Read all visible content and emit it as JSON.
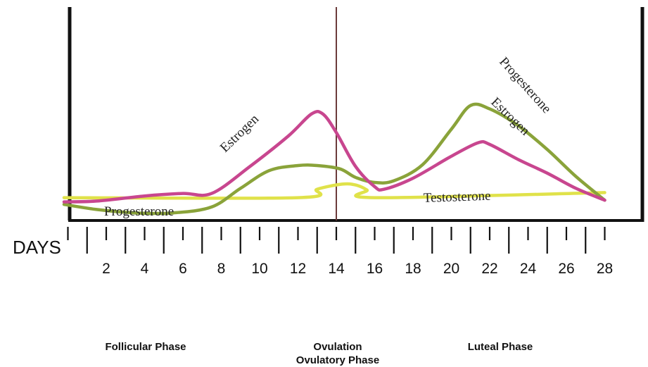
{
  "chart_data": {
    "type": "line",
    "x_axis_title": "DAYS",
    "x_ticks": [
      2,
      4,
      6,
      8,
      10,
      12,
      14,
      16,
      18,
      20,
      22,
      24,
      26,
      28
    ],
    "xlim": [
      -0.3,
      29
    ],
    "ylim": [
      0,
      10
    ],
    "ovulation_day": 14,
    "series": [
      {
        "name": "Estrogen",
        "color": "#c8468f",
        "labels": [
          "Estrogen",
          "Estrogen"
        ],
        "points": [
          [
            -0.2,
            1.1
          ],
          [
            1.5,
            1.15
          ],
          [
            4,
            1.45
          ],
          [
            6,
            1.6
          ],
          [
            7.5,
            1.6
          ],
          [
            9.5,
            3.2
          ],
          [
            11.5,
            5.0
          ],
          [
            12.7,
            6.3
          ],
          [
            13.3,
            6.3
          ],
          [
            14,
            5.2
          ],
          [
            15,
            3.2
          ],
          [
            16,
            2.0
          ],
          [
            16.5,
            1.85
          ],
          [
            18,
            2.5
          ],
          [
            20,
            3.8
          ],
          [
            21.4,
            4.6
          ],
          [
            22,
            4.5
          ],
          [
            23.5,
            3.6
          ],
          [
            25,
            2.8
          ],
          [
            26.5,
            1.9
          ],
          [
            28,
            1.2
          ]
        ]
      },
      {
        "name": "Progesterone",
        "color": "#8aa33a",
        "labels": [
          "Progesterone",
          "Progesterone"
        ],
        "points": [
          [
            -0.2,
            0.95
          ],
          [
            1.5,
            0.65
          ],
          [
            3.5,
            0.45
          ],
          [
            5.5,
            0.45
          ],
          [
            7.5,
            0.8
          ],
          [
            9,
            1.9
          ],
          [
            10.5,
            2.95
          ],
          [
            12,
            3.25
          ],
          [
            13,
            3.25
          ],
          [
            14.2,
            3.05
          ],
          [
            15,
            2.55
          ],
          [
            16,
            2.25
          ],
          [
            17,
            2.35
          ],
          [
            18.5,
            3.3
          ],
          [
            20,
            5.4
          ],
          [
            21,
            6.8
          ],
          [
            22,
            6.6
          ],
          [
            23.5,
            5.6
          ],
          [
            25,
            4.2
          ],
          [
            26.5,
            2.6
          ],
          [
            28,
            1.2
          ]
        ]
      },
      {
        "name": "Testosterone",
        "color": "#e0e24a",
        "labels": [
          "Testosterone"
        ],
        "points": [
          [
            -0.2,
            1.35
          ],
          [
            12,
            1.35
          ],
          [
            13,
            1.85
          ],
          [
            14.3,
            2.15
          ],
          [
            15,
            2.1
          ],
          [
            15.6,
            1.8
          ],
          [
            16,
            1.35
          ],
          [
            28,
            1.65
          ]
        ]
      }
    ],
    "phases": [
      "Follicular Phase",
      "Ovulation\nOvulatory Phase",
      "Luteal Phase"
    ]
  }
}
